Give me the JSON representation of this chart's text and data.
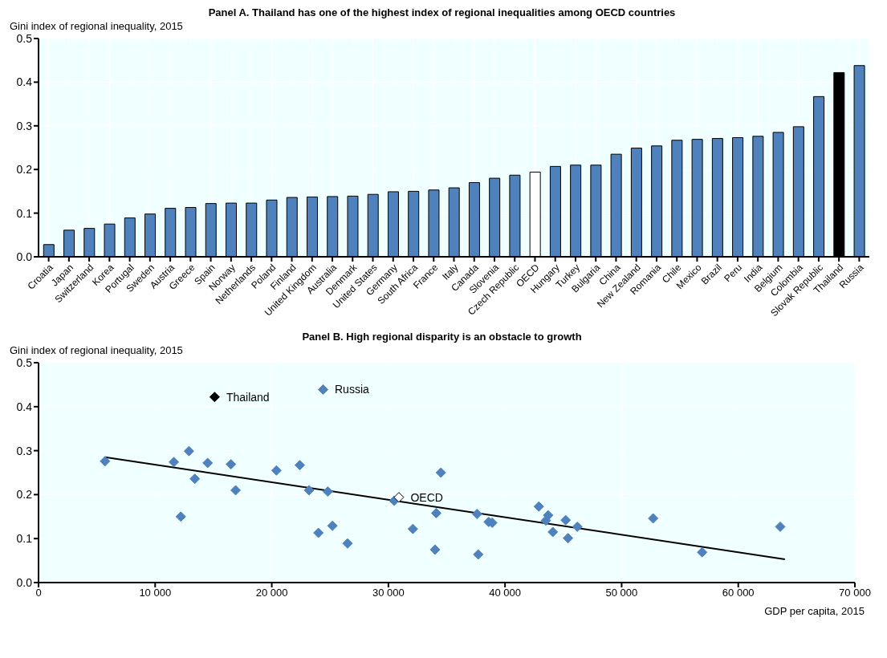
{
  "chart_data": [
    {
      "type": "bar",
      "title": "Panel A. Thailand has one of the highest index of regional inequalities among OECD countries",
      "ylabel": "Gini index of regional inequality, 2015",
      "categories": [
        "Croatia",
        "Japan",
        "Switzerland",
        "Korea",
        "Portugal",
        "Sweden",
        "Austria",
        "Greece",
        "Spain",
        "Norway",
        "Netherlands",
        "Poland",
        "Finland",
        "United Kingdom",
        "Australia",
        "Denmark",
        "United States",
        "Germany",
        "South Africa",
        "France",
        "Italy",
        "Canada",
        "Slovenia",
        "Czech Republic",
        "OECD",
        "Hungary",
        "Turkey",
        "Bulgaria",
        "China",
        "New Zealand",
        "Romania",
        "Chile",
        "Mexico",
        "Brazil",
        "Peru",
        "India",
        "Belgium",
        "Colombia",
        "Slovak Republic",
        "Thailand",
        "Russia"
      ],
      "values": [
        0.028,
        0.061,
        0.065,
        0.075,
        0.089,
        0.098,
        0.111,
        0.113,
        0.122,
        0.123,
        0.123,
        0.13,
        0.136,
        0.137,
        0.138,
        0.139,
        0.143,
        0.149,
        0.15,
        0.153,
        0.158,
        0.17,
        0.18,
        0.187,
        0.194,
        0.207,
        0.21,
        0.21,
        0.235,
        0.249,
        0.254,
        0.267,
        0.269,
        0.271,
        0.273,
        0.276,
        0.285,
        0.298,
        0.367,
        0.422,
        0.438
      ],
      "colors": [
        "#4f81bd",
        "#4f81bd",
        "#4f81bd",
        "#4f81bd",
        "#4f81bd",
        "#4f81bd",
        "#4f81bd",
        "#4f81bd",
        "#4f81bd",
        "#4f81bd",
        "#4f81bd",
        "#4f81bd",
        "#4f81bd",
        "#4f81bd",
        "#4f81bd",
        "#4f81bd",
        "#4f81bd",
        "#4f81bd",
        "#4f81bd",
        "#4f81bd",
        "#4f81bd",
        "#4f81bd",
        "#4f81bd",
        "#4f81bd",
        "#ffffff",
        "#4f81bd",
        "#4f81bd",
        "#4f81bd",
        "#4f81bd",
        "#4f81bd",
        "#4f81bd",
        "#4f81bd",
        "#4f81bd",
        "#4f81bd",
        "#4f81bd",
        "#4f81bd",
        "#4f81bd",
        "#4f81bd",
        "#4f81bd",
        "#000000",
        "#4f81bd"
      ],
      "ylim": [
        0,
        0.5
      ],
      "yticks": [
        {
          "value": 0,
          "label": "0.0"
        },
        0.1,
        0.2,
        0.3,
        0.4,
        0.5
      ],
      "grid": true
    },
    {
      "type": "scatter",
      "title": "Panel B. High regional disparity is an obstacle to growth",
      "ylabel": "Gini index of regional inequality, 2015",
      "xlabel": "GDP per capita, 2015",
      "marker": "diamond",
      "series": [
        {
          "color": "#4f81bd",
          "x": [
            5700,
            11600,
            12900,
            12200,
            13400,
            14500,
            16500,
            16900,
            20400,
            22400,
            23200,
            24800,
            24000,
            25200,
            26500,
            30500,
            32100,
            34100,
            34000,
            34500,
            37600,
            37700,
            38600,
            38900,
            42900,
            43700,
            43500,
            44100,
            45200,
            45400,
            46200,
            52700,
            56900,
            63600
          ],
          "values": [
            0.276,
            0.274,
            0.299,
            0.15,
            0.236,
            0.272,
            0.269,
            0.21,
            0.255,
            0.267,
            0.21,
            0.207,
            0.113,
            0.129,
            0.089,
            0.186,
            0.122,
            0.158,
            0.075,
            0.25,
            0.156,
            0.064,
            0.138,
            0.136,
            0.173,
            0.153,
            0.141,
            0.115,
            0.142,
            0.101,
            0.127,
            0.146,
            0.069,
            0.127
          ]
        },
        {
          "name": "Russia",
          "color": "#4f81bd",
          "x": [
            24400
          ],
          "values": [
            0.439
          ]
        },
        {
          "name": "Thailand",
          "color": "#000000",
          "x": [
            15100
          ],
          "values": [
            0.422
          ]
        },
        {
          "name": "OECD",
          "color": "#ffffff",
          "x": [
            30900
          ],
          "values": [
            0.194
          ]
        },
        {
          "type": "line",
          "marker": "none",
          "color": "#000000",
          "x": [
            5700,
            64000
          ],
          "values": [
            0.285,
            0.053
          ]
        }
      ],
      "xlim": [
        0,
        70000
      ],
      "xticks": [
        0,
        {
          "value": 10000,
          "label": "10 000"
        },
        {
          "value": 20000,
          "label": "20 000"
        },
        {
          "value": 30000,
          "label": "30 000"
        },
        {
          "value": 40000,
          "label": "40 000"
        },
        {
          "value": 50000,
          "label": "50 000"
        },
        {
          "value": 60000,
          "label": "60 000"
        },
        {
          "value": 70000,
          "label": "70 000"
        }
      ],
      "ylim": [
        0,
        0.5
      ],
      "yticks": [
        {
          "value": 0,
          "label": "0.0"
        },
        0.1,
        0.2,
        0.3,
        0.4,
        0.5
      ],
      "grid": true
    }
  ]
}
